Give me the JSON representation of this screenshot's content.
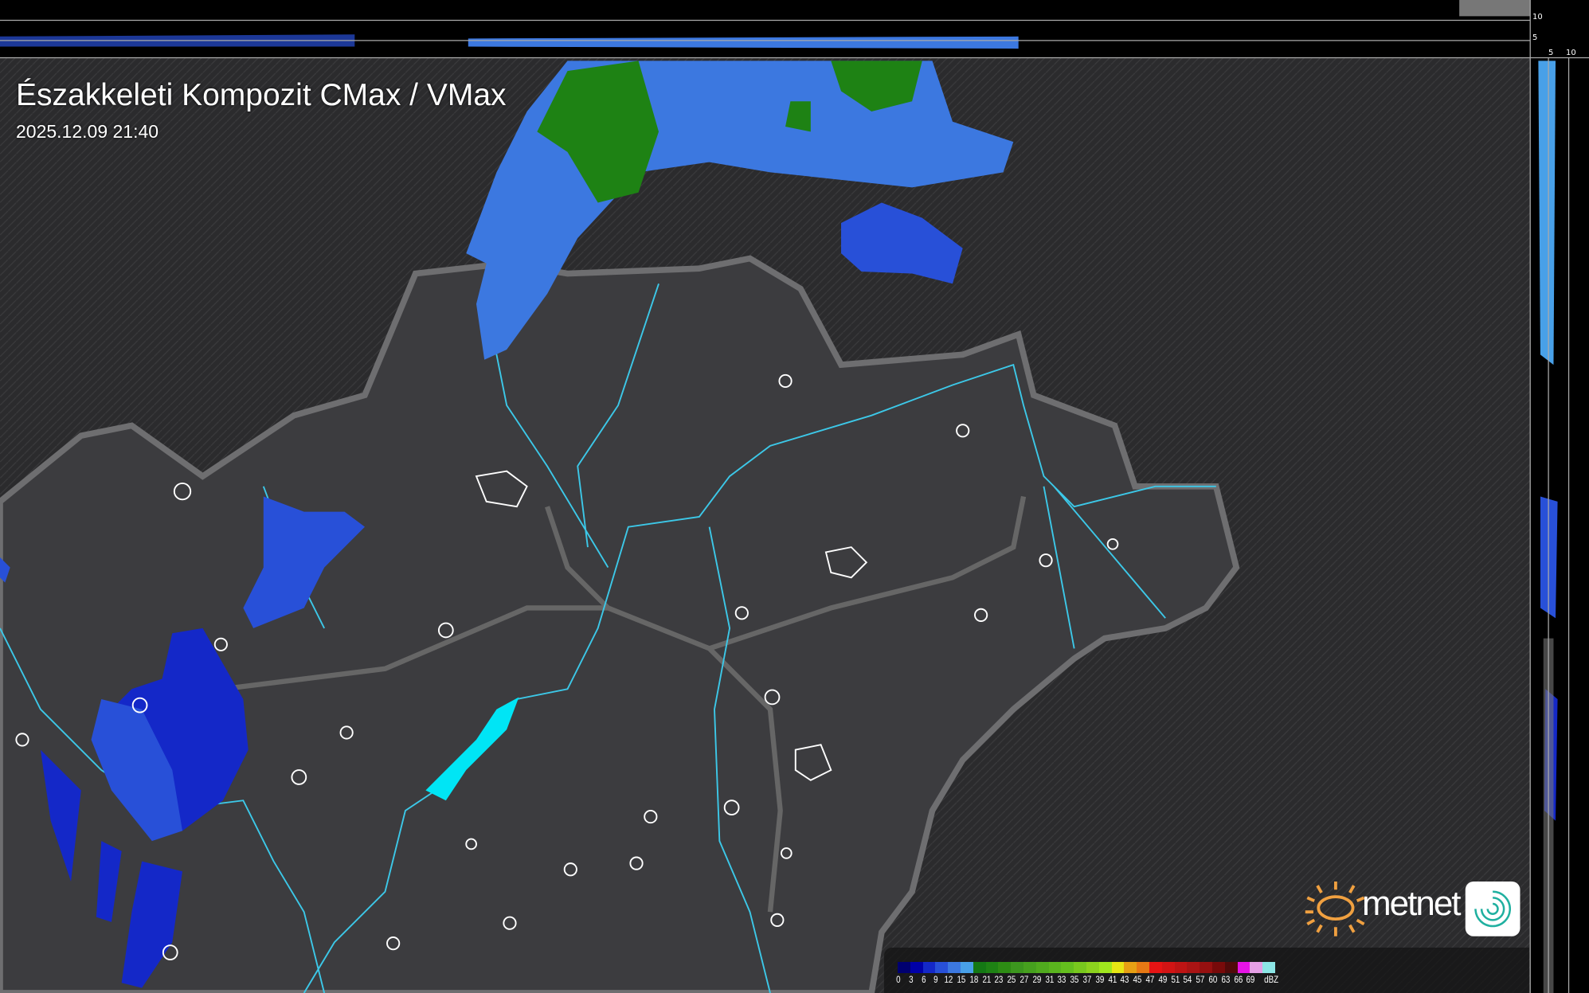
{
  "map": {
    "title": "Északkeleti Kompozit CMax / VMax",
    "timestamp": "2025.12.09 21:40",
    "top_profile_axis": [
      "10",
      "5"
    ],
    "side_profile_axis": [
      "5",
      "10"
    ]
  },
  "legend": {
    "unit": "dBZ",
    "labels": [
      "0",
      "3",
      "6",
      "9",
      "12",
      "15",
      "18",
      "21",
      "23",
      "25",
      "27",
      "29",
      "31",
      "33",
      "35",
      "37",
      "39",
      "41",
      "43",
      "45",
      "47",
      "49",
      "51",
      "54",
      "57",
      "60",
      "63",
      "66",
      "69"
    ],
    "colors": [
      "#000070",
      "#0000a8",
      "#1428c8",
      "#2850d8",
      "#3c78e0",
      "#48a0e8",
      "#147814",
      "#1e8214",
      "#2d8c14",
      "#3c961e",
      "#46a01e",
      "#50aa1e",
      "#5ab41e",
      "#64be1e",
      "#78c81e",
      "#8cd21e",
      "#a0e61e",
      "#e6e614",
      "#e6a014",
      "#e67814",
      "#e61414",
      "#d21414",
      "#be1414",
      "#aa1414",
      "#961010",
      "#780a0a",
      "#500a0a",
      "#e614e6",
      "#e6a0e6",
      "#8ce6e6"
    ]
  },
  "logo": {
    "brand": "metnet",
    "sun_color": "#f0a040",
    "swirl_color": "#20b0a0"
  },
  "colors": {
    "background": "#2e2e30",
    "border": "#6a6a6a",
    "river": "#3cc8e8",
    "cities": "#ffffff"
  }
}
